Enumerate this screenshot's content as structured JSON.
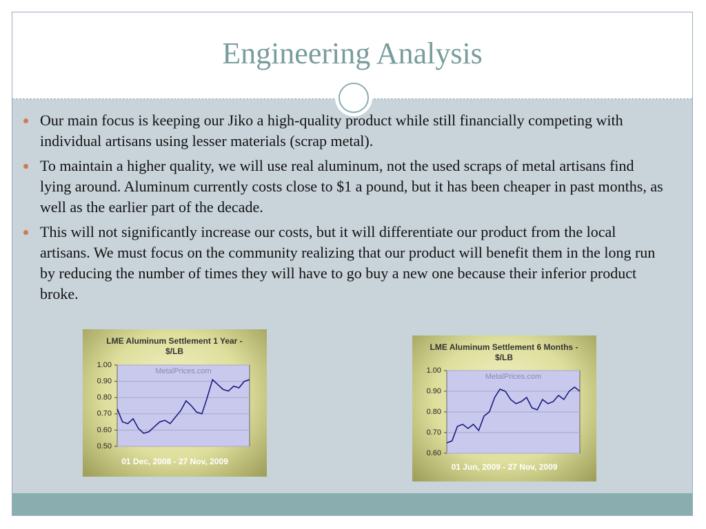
{
  "header": {
    "title": "Engineering Analysis"
  },
  "bullets": [
    "Our main focus is keeping our Jiko a high-quality product while still financially competing with individual artisans using lesser materials (scrap metal).",
    "To maintain a higher quality, we will use real aluminum, not the used scraps of metal artisans find lying around. Aluminum currently costs close to $1 a pound, but it has been cheaper in past months, as well as the earlier part of the decade.",
    "This will not significantly increase our costs, but it will differentiate our product from the local artisans. We must focus on the community realizing that our product will benefit them in the long run by reducing the number of times they will have to go buy a new one because their inferior product broke."
  ],
  "chart_data": [
    {
      "type": "line",
      "title": "LME Aluminum Settlement 1 Year - $/LB",
      "watermark": "MetalPrices.com",
      "subtitle": "01 Dec, 2008 - 27 Nov, 2009",
      "color": "#1a1a80",
      "grid": true,
      "ylim": [
        0.5,
        1.0
      ],
      "yticks": [
        {
          "value": 0.5,
          "label": "0.50"
        },
        {
          "value": 0.6,
          "label": "0.60"
        },
        {
          "value": 0.7,
          "label": "0.70"
        },
        {
          "value": 0.8,
          "label": "0.80"
        },
        {
          "value": 0.9,
          "label": "0.90"
        },
        {
          "value": 1.0,
          "label": "1.00"
        }
      ],
      "values": [
        0.73,
        0.65,
        0.64,
        0.67,
        0.61,
        0.58,
        0.59,
        0.62,
        0.65,
        0.66,
        0.64,
        0.68,
        0.72,
        0.78,
        0.75,
        0.71,
        0.7,
        0.8,
        0.91,
        0.88,
        0.85,
        0.84,
        0.87,
        0.86,
        0.9,
        0.91
      ]
    },
    {
      "type": "line",
      "title": "LME Aluminum Settlement 6 Months - $/LB",
      "watermark": "MetalPrices.com",
      "subtitle": "01 Jun, 2009 - 27 Nov, 2009",
      "color": "#1a1a80",
      "grid": true,
      "ylim": [
        0.6,
        1.0
      ],
      "yticks": [
        {
          "value": 0.6,
          "label": "0.60"
        },
        {
          "value": 0.7,
          "label": "0.70"
        },
        {
          "value": 0.8,
          "label": "0.80"
        },
        {
          "value": 0.9,
          "label": "0.90"
        },
        {
          "value": 1.0,
          "label": "1.00"
        }
      ],
      "values": [
        0.65,
        0.66,
        0.73,
        0.74,
        0.72,
        0.74,
        0.71,
        0.78,
        0.8,
        0.87,
        0.91,
        0.9,
        0.86,
        0.84,
        0.85,
        0.87,
        0.82,
        0.81,
        0.86,
        0.84,
        0.85,
        0.88,
        0.86,
        0.9,
        0.92,
        0.9
      ]
    }
  ]
}
